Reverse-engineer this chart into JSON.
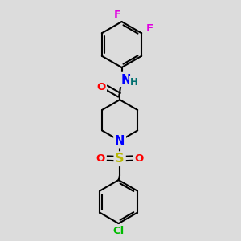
{
  "bg_color": "#dcdcdc",
  "bond_color": "#000000",
  "bond_width": 1.5,
  "atom_colors": {
    "F": "#e000e0",
    "Cl": "#00bb00",
    "N": "#0000ff",
    "O": "#ff0000",
    "S": "#b8b800",
    "H": "#007070",
    "C": "#000000"
  },
  "font_size": 9.5
}
